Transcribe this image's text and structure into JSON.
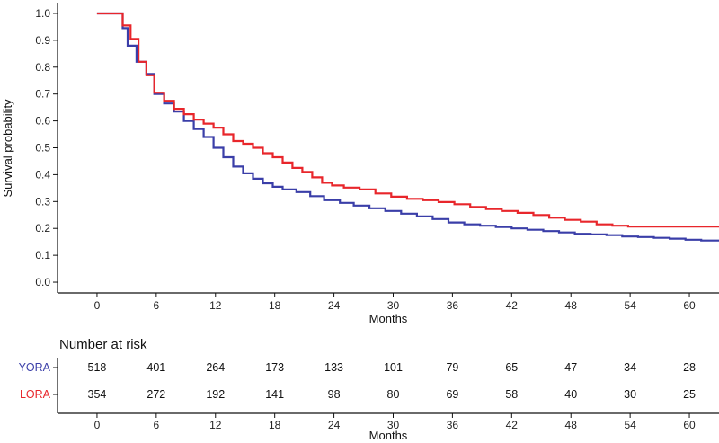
{
  "chart_data": [
    {
      "type": "line",
      "title": "",
      "xlabel": "Months",
      "ylabel": "Survival probability",
      "xlim": [
        -4,
        63
      ],
      "ylim": [
        -0.04,
        1.04
      ],
      "x_ticks": [
        0,
        6,
        12,
        18,
        24,
        30,
        36,
        42,
        48,
        54,
        60
      ],
      "y_ticks": [
        0.0,
        0.1,
        0.2,
        0.3,
        0.4,
        0.5,
        0.6,
        0.7,
        0.8,
        0.9,
        1.0
      ],
      "x_tick_labels": [
        "0",
        "6",
        "12",
        "18",
        "24",
        "30",
        "36",
        "42",
        "48",
        "54",
        "60"
      ],
      "y_tick_labels": [
        "0.0",
        "0.1",
        "0.2",
        "0.3",
        "0.4",
        "0.5",
        "0.6",
        "0.7",
        "0.8",
        "0.9",
        "1.0"
      ],
      "grid": false,
      "legend": "none",
      "series": [
        {
          "name": "YORA",
          "color": "#3a3ea8",
          "x": [
            0,
            2.6,
            3.1,
            4.0,
            5.0,
            5.8,
            6.8,
            7.8,
            8.8,
            9.8,
            10.8,
            11.8,
            12.8,
            13.8,
            14.8,
            15.8,
            16.8,
            17.8,
            18.8,
            20.2,
            21.6,
            23.0,
            24.6,
            26.0,
            27.6,
            29.2,
            30.8,
            32.4,
            34.0,
            35.6,
            37.2,
            38.8,
            40.4,
            42.0,
            43.6,
            45.2,
            46.8,
            48.4,
            50.0,
            51.6,
            53.2,
            54.8,
            56.4,
            58.0,
            59.6,
            61.2,
            63.0
          ],
          "y": [
            1.0,
            0.945,
            0.88,
            0.82,
            0.775,
            0.7,
            0.665,
            0.635,
            0.6,
            0.57,
            0.54,
            0.5,
            0.465,
            0.43,
            0.405,
            0.385,
            0.368,
            0.355,
            0.345,
            0.335,
            0.32,
            0.305,
            0.295,
            0.285,
            0.275,
            0.265,
            0.255,
            0.245,
            0.235,
            0.222,
            0.215,
            0.21,
            0.205,
            0.2,
            0.195,
            0.19,
            0.185,
            0.18,
            0.178,
            0.175,
            0.17,
            0.168,
            0.165,
            0.162,
            0.158,
            0.155,
            0.155
          ]
        },
        {
          "name": "LORA",
          "color": "#e8262b",
          "x": [
            0,
            2.6,
            3.4,
            4.2,
            5.0,
            5.8,
            6.8,
            7.8,
            8.8,
            9.8,
            10.8,
            11.8,
            12.8,
            13.8,
            14.8,
            15.8,
            16.8,
            17.8,
            18.8,
            19.8,
            20.8,
            21.8,
            22.8,
            23.8,
            25.0,
            26.6,
            28.2,
            29.8,
            31.4,
            33.0,
            34.6,
            36.2,
            37.8,
            39.4,
            41.0,
            42.6,
            44.2,
            45.8,
            47.4,
            49.0,
            50.6,
            52.2,
            53.8,
            63.0
          ],
          "y": [
            1.0,
            0.955,
            0.905,
            0.82,
            0.77,
            0.705,
            0.675,
            0.645,
            0.625,
            0.605,
            0.59,
            0.575,
            0.55,
            0.525,
            0.515,
            0.5,
            0.48,
            0.465,
            0.445,
            0.425,
            0.41,
            0.39,
            0.37,
            0.36,
            0.352,
            0.345,
            0.33,
            0.318,
            0.31,
            0.305,
            0.298,
            0.29,
            0.28,
            0.272,
            0.265,
            0.258,
            0.25,
            0.24,
            0.232,
            0.225,
            0.215,
            0.21,
            0.207,
            0.207
          ]
        }
      ]
    },
    {
      "type": "table",
      "title": "Number at risk",
      "xlabel": "Months",
      "x_ticks": [
        0,
        6,
        12,
        18,
        24,
        30,
        36,
        42,
        48,
        54,
        60
      ],
      "x_tick_labels": [
        "0",
        "6",
        "12",
        "18",
        "24",
        "30",
        "36",
        "42",
        "48",
        "54",
        "60"
      ],
      "rows": [
        {
          "name": "YORA",
          "color": "#3a3ea8",
          "values": [
            518,
            401,
            264,
            173,
            133,
            101,
            79,
            65,
            47,
            34,
            28
          ]
        },
        {
          "name": "LORA",
          "color": "#e8262b",
          "values": [
            354,
            272,
            192,
            141,
            98,
            80,
            69,
            58,
            40,
            30,
            25
          ]
        }
      ]
    }
  ]
}
